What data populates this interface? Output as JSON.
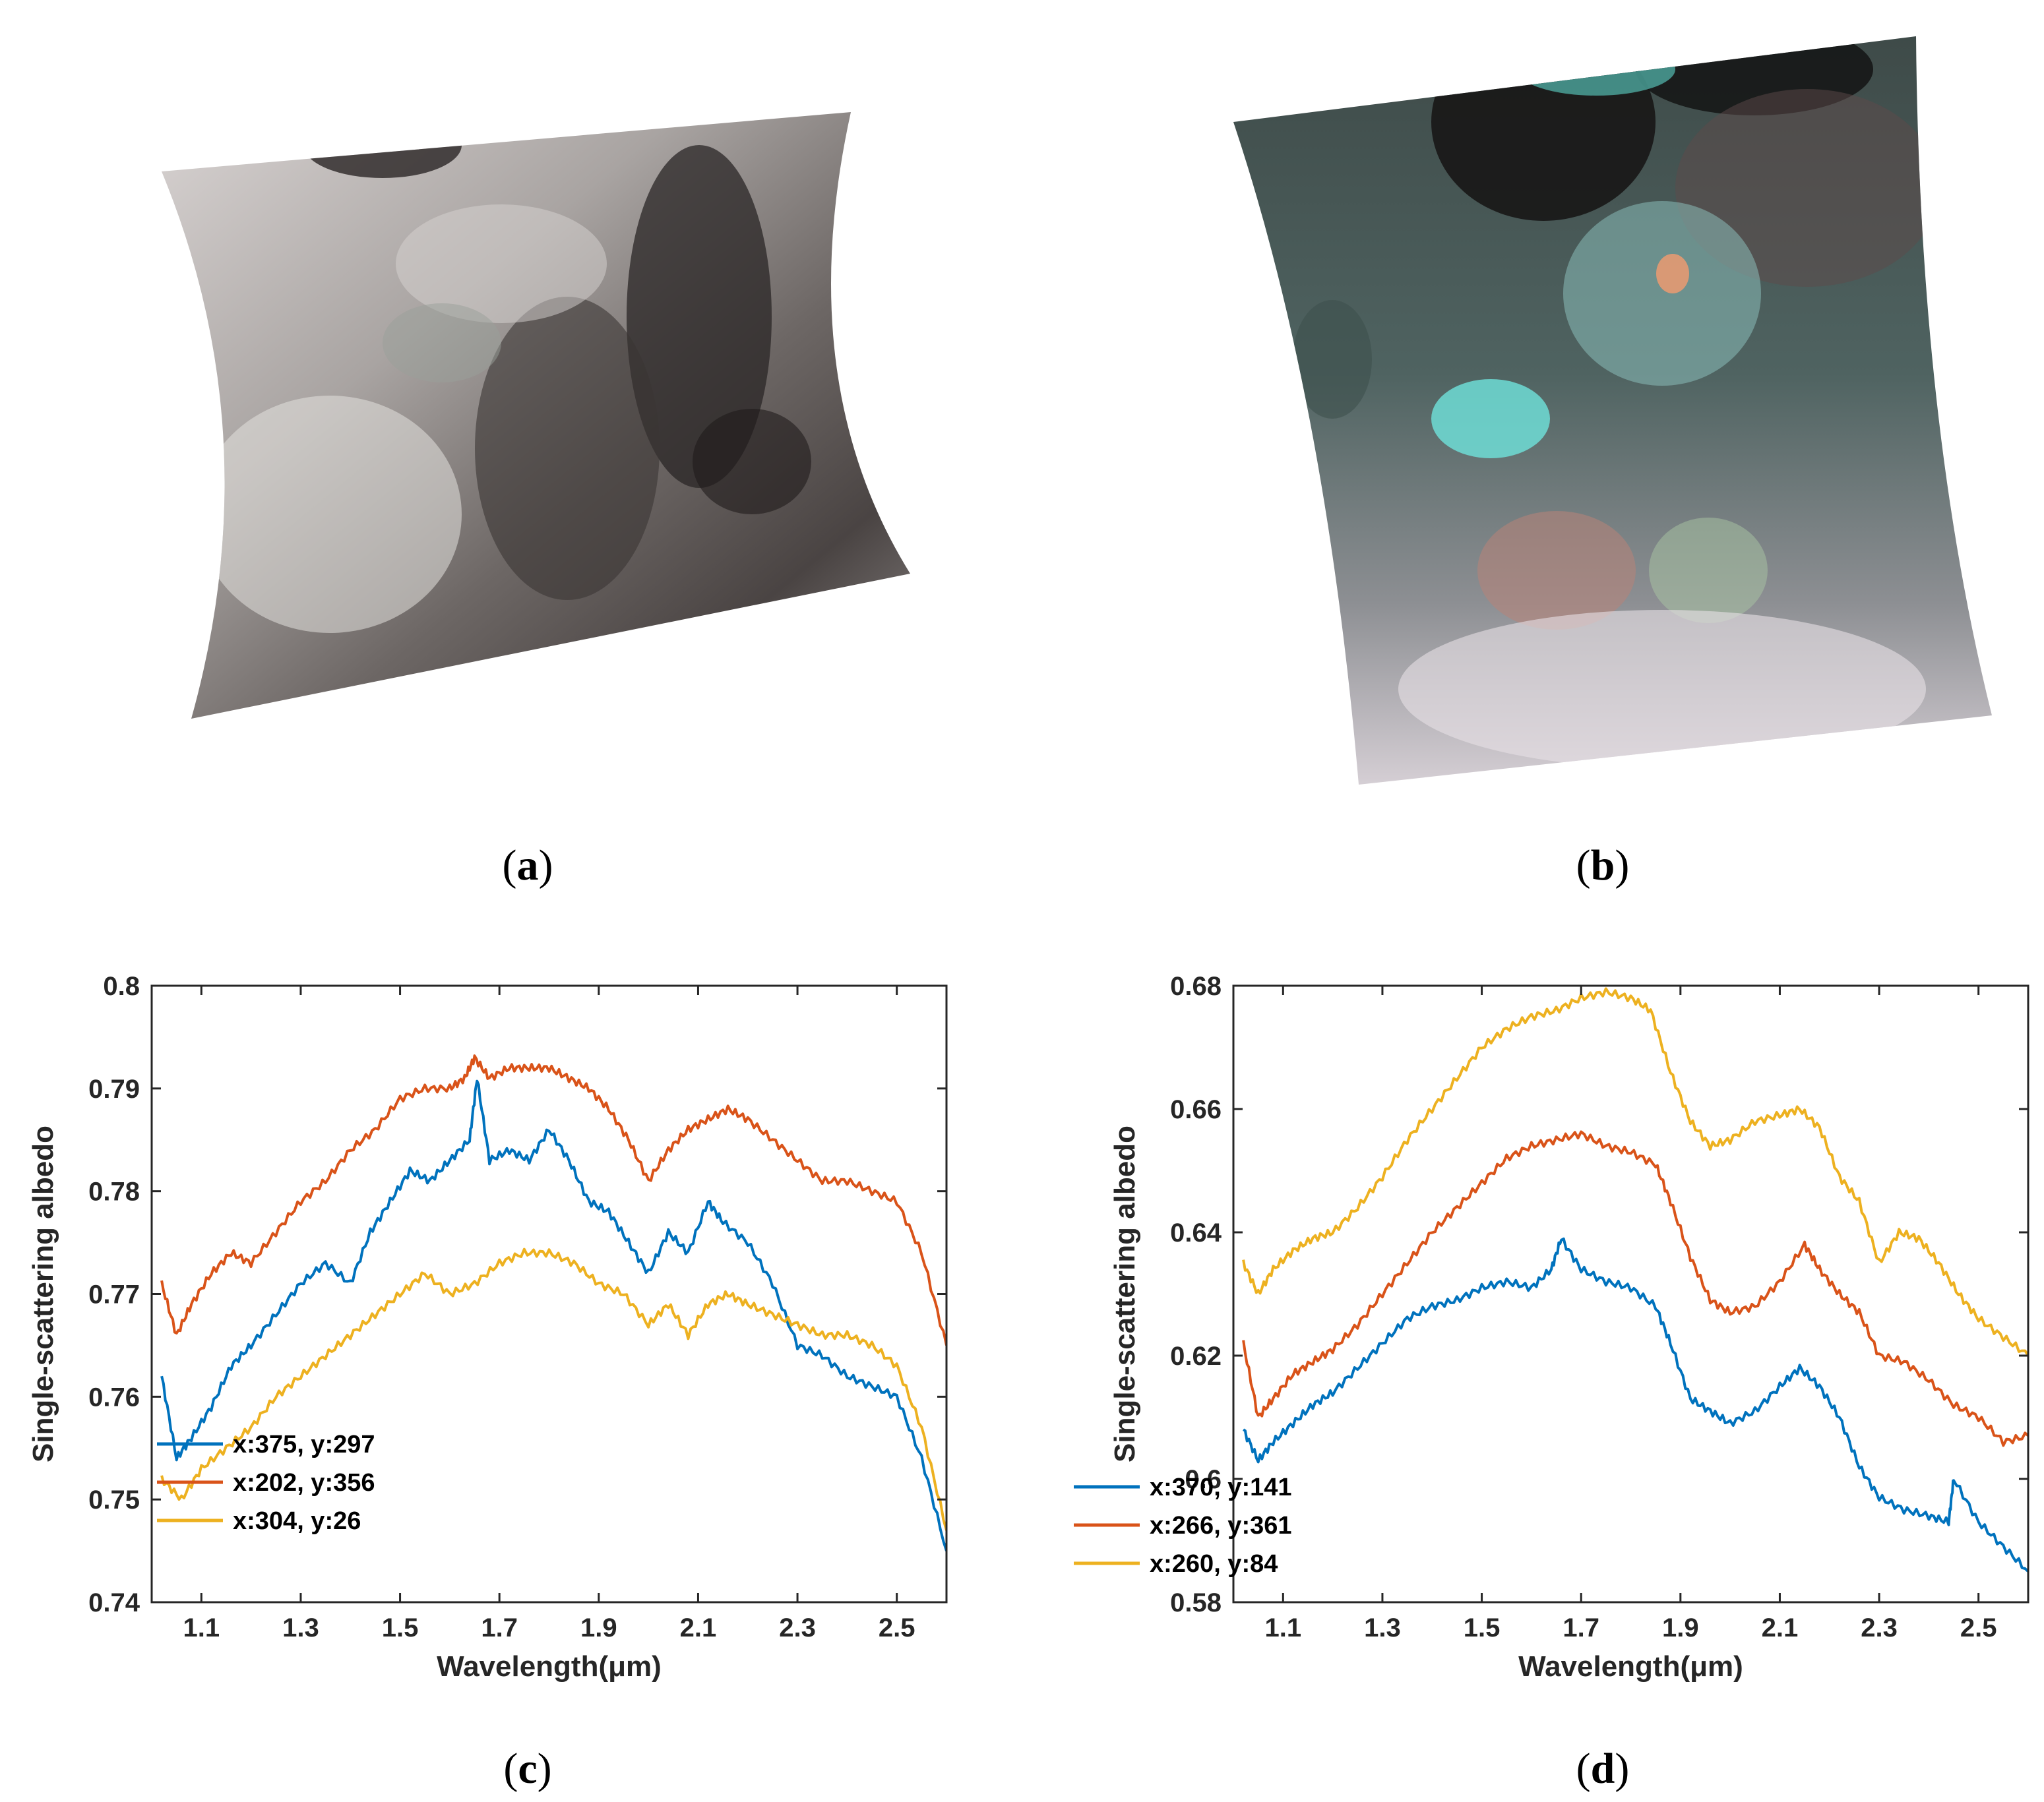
{
  "panels": {
    "a": {
      "caption": "a"
    },
    "b": {
      "caption": "b"
    },
    "c": {
      "caption": "c"
    },
    "d": {
      "caption": "d"
    }
  },
  "chart_data": [
    {
      "id": "c",
      "type": "line",
      "title": "",
      "xlabel": "Wavelength(μm)",
      "ylabel": "Single-scattering albedo",
      "xlim": [
        1.0,
        2.6
      ],
      "ylim": [
        0.74,
        0.8
      ],
      "xticks": [
        "1.1",
        "1.3",
        "1.5",
        "1.7",
        "1.9",
        "2.1",
        "2.3",
        "2.5"
      ],
      "yticks": [
        "0.74",
        "0.75",
        "0.76",
        "0.77",
        "0.78",
        "0.79",
        "0.8"
      ],
      "legend_position": "lower-left",
      "series": [
        {
          "name": "x:375, y:297",
          "color": "#0072BD",
          "x": [
            1.02,
            1.05,
            1.08,
            1.12,
            1.16,
            1.2,
            1.25,
            1.3,
            1.35,
            1.4,
            1.44,
            1.48,
            1.52,
            1.56,
            1.6,
            1.64,
            1.655,
            1.68,
            1.72,
            1.76,
            1.8,
            1.84,
            1.88,
            1.92,
            1.96,
            2.0,
            2.04,
            2.08,
            2.12,
            2.15,
            2.2,
            2.25,
            2.3,
            2.35,
            2.4,
            2.45,
            2.5,
            2.55,
            2.6
          ],
          "y": [
            0.762,
            0.754,
            0.756,
            0.759,
            0.763,
            0.765,
            0.768,
            0.771,
            0.773,
            0.771,
            0.776,
            0.779,
            0.782,
            0.781,
            0.783,
            0.785,
            0.791,
            0.783,
            0.784,
            0.783,
            0.786,
            0.783,
            0.779,
            0.778,
            0.775,
            0.772,
            0.776,
            0.774,
            0.779,
            0.777,
            0.775,
            0.771,
            0.765,
            0.764,
            0.762,
            0.761,
            0.76,
            0.754,
            0.745
          ]
        },
        {
          "name": "x:202, y:356",
          "color": "#D95319",
          "x": [
            1.02,
            1.05,
            1.08,
            1.12,
            1.16,
            1.2,
            1.25,
            1.3,
            1.35,
            1.4,
            1.45,
            1.5,
            1.55,
            1.6,
            1.63,
            1.65,
            1.68,
            1.72,
            1.76,
            1.8,
            1.84,
            1.88,
            1.92,
            1.96,
            2.0,
            2.04,
            2.08,
            2.12,
            2.16,
            2.2,
            2.25,
            2.3,
            2.35,
            2.4,
            2.45,
            2.5,
            2.55,
            2.6
          ],
          "y": [
            0.771,
            0.766,
            0.769,
            0.772,
            0.774,
            0.773,
            0.776,
            0.779,
            0.781,
            0.784,
            0.786,
            0.789,
            0.79,
            0.79,
            0.791,
            0.793,
            0.791,
            0.792,
            0.792,
            0.792,
            0.791,
            0.79,
            0.788,
            0.785,
            0.781,
            0.784,
            0.786,
            0.787,
            0.788,
            0.787,
            0.785,
            0.783,
            0.781,
            0.781,
            0.78,
            0.779,
            0.774,
            0.765
          ]
        },
        {
          "name": "x:304, y:26",
          "color": "#EDB120",
          "x": [
            1.02,
            1.06,
            1.1,
            1.15,
            1.2,
            1.25,
            1.3,
            1.35,
            1.4,
            1.45,
            1.5,
            1.55,
            1.6,
            1.65,
            1.7,
            1.75,
            1.8,
            1.85,
            1.9,
            1.95,
            2.0,
            2.04,
            2.08,
            2.12,
            2.16,
            2.2,
            2.25,
            2.3,
            2.35,
            2.4,
            2.45,
            2.5,
            2.55,
            2.6
          ],
          "y": [
            0.752,
            0.75,
            0.753,
            0.755,
            0.757,
            0.76,
            0.762,
            0.764,
            0.766,
            0.768,
            0.77,
            0.772,
            0.77,
            0.771,
            0.773,
            0.774,
            0.774,
            0.773,
            0.771,
            0.77,
            0.767,
            0.769,
            0.766,
            0.769,
            0.77,
            0.769,
            0.768,
            0.767,
            0.766,
            0.766,
            0.765,
            0.763,
            0.757,
            0.747
          ]
        }
      ]
    },
    {
      "id": "d",
      "type": "line",
      "title": "",
      "xlabel": "Wavelength(μm)",
      "ylabel": "Single-scattering albedo",
      "xlim": [
        1.0,
        2.6
      ],
      "ylim": [
        0.58,
        0.68
      ],
      "xticks": [
        "1.1",
        "1.3",
        "1.5",
        "1.7",
        "1.9",
        "2.1",
        "2.3",
        "2.5"
      ],
      "yticks": [
        "0.58",
        "0.6",
        "0.62",
        "0.64",
        "0.66",
        "0.68"
      ],
      "legend_position": "lower-left",
      "series": [
        {
          "name": "x:370, y:141",
          "color": "#0072BD",
          "x": [
            1.02,
            1.05,
            1.08,
            1.12,
            1.16,
            1.2,
            1.25,
            1.3,
            1.35,
            1.4,
            1.45,
            1.5,
            1.55,
            1.6,
            1.64,
            1.66,
            1.7,
            1.75,
            1.8,
            1.85,
            1.88,
            1.92,
            1.96,
            2.0,
            2.05,
            2.1,
            2.14,
            2.18,
            2.22,
            2.26,
            2.3,
            2.35,
            2.4,
            2.44,
            2.45,
            2.5,
            2.55,
            2.6
          ],
          "y": [
            0.608,
            0.603,
            0.606,
            0.609,
            0.612,
            0.614,
            0.618,
            0.622,
            0.626,
            0.628,
            0.629,
            0.631,
            0.632,
            0.631,
            0.634,
            0.639,
            0.634,
            0.632,
            0.631,
            0.628,
            0.622,
            0.613,
            0.611,
            0.609,
            0.611,
            0.615,
            0.618,
            0.615,
            0.61,
            0.602,
            0.597,
            0.595,
            0.594,
            0.593,
            0.6,
            0.593,
            0.589,
            0.585
          ]
        },
        {
          "name": "x:266, y:361",
          "color": "#D95319",
          "x": [
            1.02,
            1.05,
            1.08,
            1.12,
            1.16,
            1.2,
            1.25,
            1.3,
            1.35,
            1.4,
            1.45,
            1.5,
            1.55,
            1.6,
            1.65,
            1.7,
            1.75,
            1.8,
            1.85,
            1.88,
            1.92,
            1.96,
            2.0,
            2.05,
            2.1,
            2.15,
            2.18,
            2.22,
            2.26,
            2.3,
            2.35,
            2.4,
            2.45,
            2.5,
            2.55,
            2.6
          ],
          "y": [
            0.622,
            0.61,
            0.613,
            0.617,
            0.619,
            0.621,
            0.625,
            0.63,
            0.635,
            0.64,
            0.644,
            0.648,
            0.652,
            0.654,
            0.655,
            0.656,
            0.654,
            0.653,
            0.651,
            0.645,
            0.636,
            0.629,
            0.627,
            0.628,
            0.632,
            0.638,
            0.634,
            0.63,
            0.627,
            0.62,
            0.619,
            0.616,
            0.612,
            0.61,
            0.606,
            0.607
          ]
        },
        {
          "name": "x:260, y:84",
          "color": "#EDB120",
          "x": [
            1.02,
            1.05,
            1.08,
            1.12,
            1.16,
            1.2,
            1.25,
            1.3,
            1.35,
            1.4,
            1.45,
            1.5,
            1.55,
            1.6,
            1.65,
            1.7,
            1.75,
            1.8,
            1.84,
            1.88,
            1.92,
            1.96,
            2.0,
            2.05,
            2.1,
            2.14,
            2.18,
            2.22,
            2.26,
            2.3,
            2.34,
            2.38,
            2.42,
            2.46,
            2.5,
            2.55,
            2.6
          ],
          "y": [
            0.635,
            0.63,
            0.634,
            0.637,
            0.639,
            0.64,
            0.644,
            0.649,
            0.655,
            0.66,
            0.665,
            0.67,
            0.673,
            0.675,
            0.676,
            0.678,
            0.679,
            0.678,
            0.676,
            0.666,
            0.658,
            0.654,
            0.655,
            0.658,
            0.659,
            0.66,
            0.657,
            0.649,
            0.645,
            0.635,
            0.64,
            0.639,
            0.635,
            0.63,
            0.626,
            0.623,
            0.62
          ]
        }
      ]
    }
  ]
}
